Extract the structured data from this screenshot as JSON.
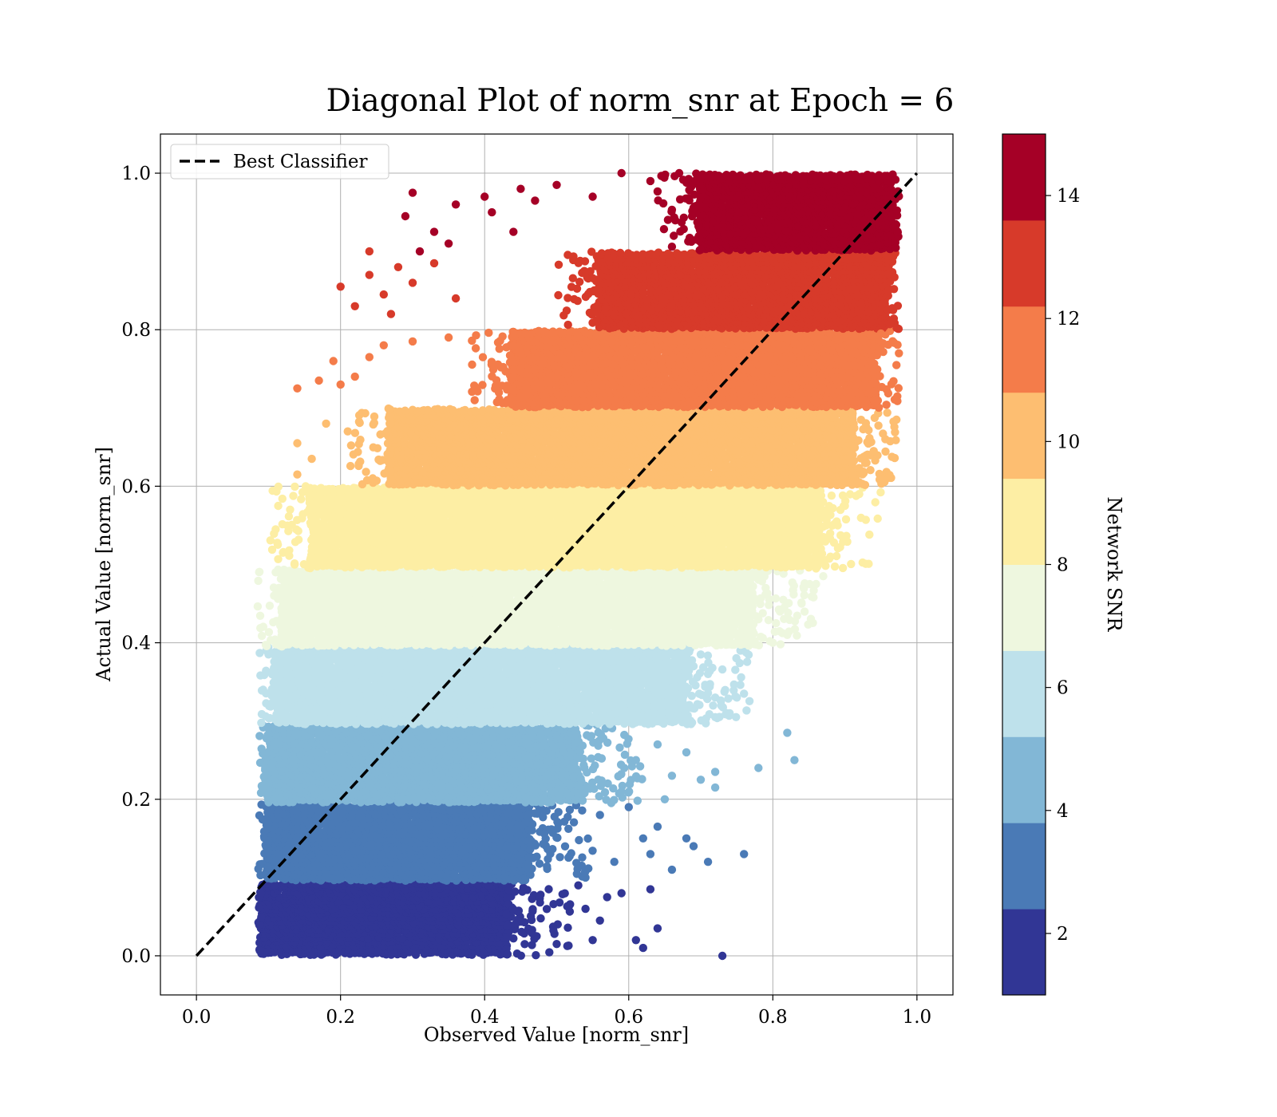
{
  "chart_data": {
    "type": "scatter",
    "title": "Diagonal Plot of norm_snr at Epoch = 6",
    "xlabel": "Observed Value [norm_snr]",
    "ylabel": "Actual Value [norm_snr]",
    "xlim": [
      -0.05,
      1.05
    ],
    "ylim": [
      -0.05,
      1.05
    ],
    "x_ticks": [
      0.0,
      0.2,
      0.4,
      0.6,
      0.8,
      1.0
    ],
    "x_tick_labels": [
      "0.0",
      "0.2",
      "0.4",
      "0.6",
      "0.8",
      "1.0"
    ],
    "y_ticks": [
      0.0,
      0.2,
      0.4,
      0.6,
      0.8,
      1.0
    ],
    "y_tick_labels": [
      "0.0",
      "0.2",
      "0.4",
      "0.6",
      "0.8",
      "1.0"
    ],
    "grid": true,
    "legend": {
      "placement": "upper-left",
      "entries": [
        {
          "label": "Best Classifier",
          "style": "dashed",
          "color": "#000000"
        }
      ]
    },
    "reference_line": {
      "name": "Best Classifier",
      "x": [
        0.0,
        1.0
      ],
      "y": [
        0.0,
        1.0
      ],
      "color": "#000000",
      "style": "dashed"
    },
    "colorbar": {
      "label": "Network SNR",
      "range": [
        1,
        15
      ],
      "ticks": [
        2,
        4,
        6,
        8,
        10,
        12,
        14
      ],
      "tick_labels": [
        "2",
        "4",
        "6",
        "8",
        "10",
        "12",
        "14"
      ],
      "levels": [
        1,
        2.4,
        3.8,
        5.2,
        6.6,
        8.0,
        9.4,
        10.8,
        12.2,
        13.6,
        15
      ],
      "colors": [
        "#313695",
        "#4a7ab6",
        "#82b7d6",
        "#bee1eb",
        "#eef7df",
        "#fdeea4",
        "#fdbe71",
        "#f47c4a",
        "#d73a2a",
        "#a50026"
      ]
    },
    "bands": [
      {
        "snr_bin": 1,
        "y_range": [
          0.0,
          0.095
        ],
        "x_core": [
          0.09,
          0.43
        ],
        "color": "#313695"
      },
      {
        "snr_bin": 2,
        "y_range": [
          0.095,
          0.195
        ],
        "x_core": [
          0.1,
          0.46
        ],
        "color": "#4a7ab6"
      },
      {
        "snr_bin": 3,
        "y_range": [
          0.195,
          0.295
        ],
        "x_core": [
          0.1,
          0.53
        ],
        "color": "#82b7d6"
      },
      {
        "snr_bin": 4,
        "y_range": [
          0.295,
          0.395
        ],
        "x_core": [
          0.11,
          0.68
        ],
        "color": "#bee1eb"
      },
      {
        "snr_bin": 5,
        "y_range": [
          0.395,
          0.495
        ],
        "x_core": [
          0.12,
          0.77
        ],
        "color": "#eef7df"
      },
      {
        "snr_bin": 6,
        "y_range": [
          0.495,
          0.6
        ],
        "x_core": [
          0.16,
          0.86
        ],
        "color": "#fdeea4"
      },
      {
        "snr_bin": 7,
        "y_range": [
          0.6,
          0.7
        ],
        "x_core": [
          0.27,
          0.91
        ],
        "color": "#fdbe71"
      },
      {
        "snr_bin": 8,
        "y_range": [
          0.7,
          0.8
        ],
        "x_core": [
          0.44,
          0.94
        ],
        "color": "#f47c4a"
      },
      {
        "snr_bin": 9,
        "y_range": [
          0.8,
          0.9
        ],
        "x_core": [
          0.56,
          0.96
        ],
        "color": "#d73a2a"
      },
      {
        "snr_bin": 10,
        "y_range": [
          0.9,
          1.0
        ],
        "x_core": [
          0.7,
          0.97
        ],
        "color": "#a50026"
      }
    ],
    "outliers": [
      {
        "x": 0.73,
        "y": 0.0,
        "bin": 1
      },
      {
        "x": 0.62,
        "y": 0.01,
        "bin": 1
      },
      {
        "x": 0.64,
        "y": 0.035,
        "bin": 1
      },
      {
        "x": 0.63,
        "y": 0.085,
        "bin": 1
      },
      {
        "x": 0.59,
        "y": 0.08,
        "bin": 1
      },
      {
        "x": 0.55,
        "y": 0.02,
        "bin": 1
      },
      {
        "x": 0.56,
        "y": 0.045,
        "bin": 1
      },
      {
        "x": 0.54,
        "y": 0.06,
        "bin": 1
      },
      {
        "x": 0.57,
        "y": 0.075,
        "bin": 1
      },
      {
        "x": 0.61,
        "y": 0.02,
        "bin": 1
      },
      {
        "x": 0.53,
        "y": 0.09,
        "bin": 1
      },
      {
        "x": 0.5,
        "y": 0.015,
        "bin": 1
      },
      {
        "x": 0.76,
        "y": 0.13,
        "bin": 2
      },
      {
        "x": 0.71,
        "y": 0.12,
        "bin": 2
      },
      {
        "x": 0.68,
        "y": 0.15,
        "bin": 2
      },
      {
        "x": 0.66,
        "y": 0.11,
        "bin": 2
      },
      {
        "x": 0.69,
        "y": 0.14,
        "bin": 2
      },
      {
        "x": 0.64,
        "y": 0.165,
        "bin": 2
      },
      {
        "x": 0.63,
        "y": 0.13,
        "bin": 2
      },
      {
        "x": 0.6,
        "y": 0.19,
        "bin": 2
      },
      {
        "x": 0.58,
        "y": 0.12,
        "bin": 2
      },
      {
        "x": 0.62,
        "y": 0.15,
        "bin": 2
      },
      {
        "x": 0.56,
        "y": 0.18,
        "bin": 2
      },
      {
        "x": 0.54,
        "y": 0.1,
        "bin": 2
      },
      {
        "x": 0.82,
        "y": 0.285,
        "bin": 3
      },
      {
        "x": 0.83,
        "y": 0.25,
        "bin": 3
      },
      {
        "x": 0.78,
        "y": 0.24,
        "bin": 3
      },
      {
        "x": 0.72,
        "y": 0.235,
        "bin": 3
      },
      {
        "x": 0.72,
        "y": 0.215,
        "bin": 3
      },
      {
        "x": 0.7,
        "y": 0.225,
        "bin": 3
      },
      {
        "x": 0.68,
        "y": 0.26,
        "bin": 3
      },
      {
        "x": 0.66,
        "y": 0.23,
        "bin": 3
      },
      {
        "x": 0.65,
        "y": 0.2,
        "bin": 3
      },
      {
        "x": 0.64,
        "y": 0.27,
        "bin": 3
      },
      {
        "x": 0.61,
        "y": 0.25,
        "bin": 3
      },
      {
        "x": 0.59,
        "y": 0.21,
        "bin": 3
      },
      {
        "x": 0.76,
        "y": 0.335,
        "bin": 4
      },
      {
        "x": 0.74,
        "y": 0.31,
        "bin": 4
      },
      {
        "x": 0.75,
        "y": 0.33,
        "bin": 4
      },
      {
        "x": 0.72,
        "y": 0.33,
        "bin": 4
      },
      {
        "x": 0.71,
        "y": 0.36,
        "bin": 4
      },
      {
        "x": 0.69,
        "y": 0.37,
        "bin": 4
      },
      {
        "x": 0.72,
        "y": 0.305,
        "bin": 4
      },
      {
        "x": 0.7,
        "y": 0.385,
        "bin": 4
      },
      {
        "x": 0.1,
        "y": 0.385,
        "bin": 4
      },
      {
        "x": 0.11,
        "y": 0.335,
        "bin": 4
      },
      {
        "x": 0.87,
        "y": 0.485,
        "bin": 5
      },
      {
        "x": 0.86,
        "y": 0.475,
        "bin": 5
      },
      {
        "x": 0.84,
        "y": 0.45,
        "bin": 5
      },
      {
        "x": 0.82,
        "y": 0.41,
        "bin": 5
      },
      {
        "x": 0.81,
        "y": 0.44,
        "bin": 5
      },
      {
        "x": 0.8,
        "y": 0.4,
        "bin": 5
      },
      {
        "x": 0.78,
        "y": 0.43,
        "bin": 5
      },
      {
        "x": 0.79,
        "y": 0.47,
        "bin": 5
      },
      {
        "x": 0.11,
        "y": 0.49,
        "bin": 5
      },
      {
        "x": 0.12,
        "y": 0.46,
        "bin": 5
      },
      {
        "x": 0.92,
        "y": 0.59,
        "bin": 6
      },
      {
        "x": 0.89,
        "y": 0.55,
        "bin": 6
      },
      {
        "x": 0.88,
        "y": 0.51,
        "bin": 6
      },
      {
        "x": 0.9,
        "y": 0.575,
        "bin": 6
      },
      {
        "x": 0.87,
        "y": 0.535,
        "bin": 6
      },
      {
        "x": 0.11,
        "y": 0.545,
        "bin": 6
      },
      {
        "x": 0.12,
        "y": 0.515,
        "bin": 6
      },
      {
        "x": 0.13,
        "y": 0.57,
        "bin": 6
      },
      {
        "x": 0.93,
        "y": 0.63,
        "bin": 7
      },
      {
        "x": 0.92,
        "y": 0.605,
        "bin": 7
      },
      {
        "x": 0.94,
        "y": 0.645,
        "bin": 7
      },
      {
        "x": 0.14,
        "y": 0.655,
        "bin": 7
      },
      {
        "x": 0.14,
        "y": 0.615,
        "bin": 7
      },
      {
        "x": 0.16,
        "y": 0.635,
        "bin": 7
      },
      {
        "x": 0.18,
        "y": 0.68,
        "bin": 7
      },
      {
        "x": 0.21,
        "y": 0.67,
        "bin": 7
      },
      {
        "x": 0.14,
        "y": 0.725,
        "bin": 8
      },
      {
        "x": 0.19,
        "y": 0.76,
        "bin": 8
      },
      {
        "x": 0.17,
        "y": 0.735,
        "bin": 8
      },
      {
        "x": 0.2,
        "y": 0.73,
        "bin": 8
      },
      {
        "x": 0.22,
        "y": 0.74,
        "bin": 8
      },
      {
        "x": 0.24,
        "y": 0.765,
        "bin": 8
      },
      {
        "x": 0.26,
        "y": 0.78,
        "bin": 8
      },
      {
        "x": 0.3,
        "y": 0.785,
        "bin": 8
      },
      {
        "x": 0.35,
        "y": 0.79,
        "bin": 8
      },
      {
        "x": 0.95,
        "y": 0.795,
        "bin": 8
      },
      {
        "x": 0.2,
        "y": 0.855,
        "bin": 9
      },
      {
        "x": 0.22,
        "y": 0.83,
        "bin": 9
      },
      {
        "x": 0.24,
        "y": 0.87,
        "bin": 9
      },
      {
        "x": 0.26,
        "y": 0.845,
        "bin": 9
      },
      {
        "x": 0.28,
        "y": 0.88,
        "bin": 9
      },
      {
        "x": 0.3,
        "y": 0.86,
        "bin": 9
      },
      {
        "x": 0.33,
        "y": 0.885,
        "bin": 9
      },
      {
        "x": 0.27,
        "y": 0.82,
        "bin": 9
      },
      {
        "x": 0.36,
        "y": 0.84,
        "bin": 9
      },
      {
        "x": 0.24,
        "y": 0.9,
        "bin": 9
      },
      {
        "x": 0.3,
        "y": 0.975,
        "bin": 10
      },
      {
        "x": 0.29,
        "y": 0.945,
        "bin": 10
      },
      {
        "x": 0.31,
        "y": 0.9,
        "bin": 10
      },
      {
        "x": 0.33,
        "y": 0.925,
        "bin": 10
      },
      {
        "x": 0.35,
        "y": 0.91,
        "bin": 10
      },
      {
        "x": 0.36,
        "y": 0.96,
        "bin": 10
      },
      {
        "x": 0.4,
        "y": 0.97,
        "bin": 10
      },
      {
        "x": 0.41,
        "y": 0.95,
        "bin": 10
      },
      {
        "x": 0.45,
        "y": 0.98,
        "bin": 10
      },
      {
        "x": 0.47,
        "y": 0.965,
        "bin": 10
      },
      {
        "x": 0.5,
        "y": 0.985,
        "bin": 10
      },
      {
        "x": 0.44,
        "y": 0.925,
        "bin": 10
      },
      {
        "x": 0.55,
        "y": 0.97,
        "bin": 10
      },
      {
        "x": 0.59,
        "y": 1.0,
        "bin": 10
      },
      {
        "x": 0.63,
        "y": 0.99,
        "bin": 10
      },
      {
        "x": 0.67,
        "y": 1.0,
        "bin": 10
      }
    ]
  }
}
